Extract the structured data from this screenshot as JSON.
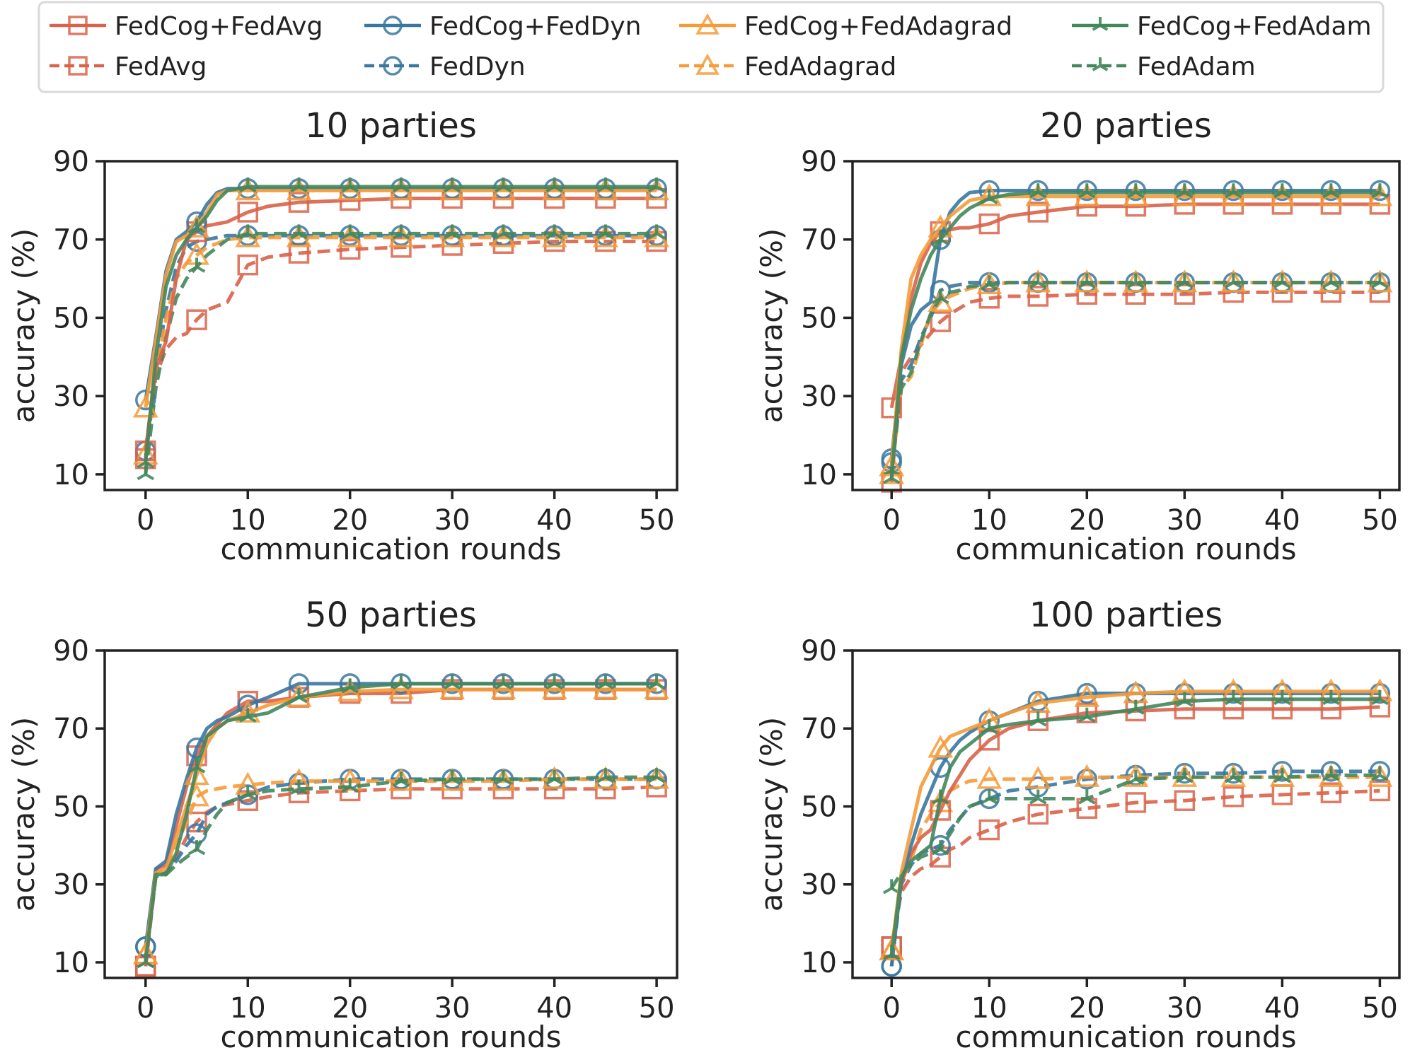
{
  "chart_data": {
    "type": "line",
    "figure": "Accuracy vs communication rounds for varying number of parties",
    "legend": {
      "placement": "top-center",
      "entries": [
        {
          "name": "FedCog+FedAvg",
          "color": "#d9634a",
          "marker": "square",
          "linestyle": "solid"
        },
        {
          "name": "FedCog+FedDyn",
          "color": "#3a77a0",
          "marker": "circle",
          "linestyle": "solid"
        },
        {
          "name": "FedCog+FedAdagrad",
          "color": "#f59b38",
          "marker": "triangle",
          "linestyle": "solid"
        },
        {
          "name": "FedCog+FedAdam",
          "color": "#43875c",
          "marker": "star",
          "linestyle": "solid"
        },
        {
          "name": "FedAvg",
          "color": "#d9634a",
          "marker": "square",
          "linestyle": "dashed"
        },
        {
          "name": "FedDyn",
          "color": "#3a77a0",
          "marker": "circle",
          "linestyle": "dashed"
        },
        {
          "name": "FedAdagrad",
          "color": "#f59b38",
          "marker": "triangle",
          "linestyle": "dashed"
        },
        {
          "name": "FedAdam",
          "color": "#43875c",
          "marker": "star",
          "linestyle": "dashed"
        }
      ]
    },
    "x": [
      0,
      1,
      2,
      3,
      4,
      5,
      6,
      7,
      8,
      10,
      12,
      15,
      20,
      25,
      30,
      35,
      40,
      45,
      50
    ],
    "marker_x": [
      0,
      5,
      10,
      15,
      20,
      25,
      30,
      35,
      40,
      45,
      50
    ],
    "xlabel": "communication rounds",
    "ylabel": "accuracy (%)",
    "xlim": [
      -4,
      52
    ],
    "ylim": [
      6,
      90
    ],
    "xticks": [
      "0",
      "10",
      "20",
      "30",
      "40",
      "50"
    ],
    "yticks": [
      "10",
      "30",
      "50",
      "70",
      "90"
    ],
    "grid": false,
    "panels": [
      {
        "title": "10 parties",
        "series": [
          {
            "name": "FedCog+FedAvg",
            "values": [
              16,
              37,
              44,
              60,
              70,
              72,
              73.5,
              74,
              74.5,
              77,
              78.5,
              79.5,
              80,
              80.5,
              80.5,
              80.5,
              80.5,
              80.5,
              80.5
            ]
          },
          {
            "name": "FedCog+FedDyn",
            "values": [
              29,
              45,
              62,
              70,
              72,
              74.5,
              79,
              82,
              83,
              83,
              83,
              83,
              83,
              83,
              83,
              83,
              83,
              83,
              83
            ]
          },
          {
            "name": "FedCog+FedAdagrad",
            "values": [
              27,
              44,
              61,
              69.5,
              71,
              73,
              77,
              81.5,
              82.5,
              82.5,
              82.5,
              82.5,
              82.5,
              82.5,
              82.5,
              82.5,
              82.5,
              82.5,
              82.5
            ]
          },
          {
            "name": "FedCog+FedAdam",
            "values": [
              13,
              40,
              58,
              66,
              70,
              73,
              76,
              80,
              82.5,
              83.5,
              83.5,
              83.5,
              83.5,
              83.5,
              83.5,
              83.5,
              83.5,
              83.5,
              83.5
            ]
          },
          {
            "name": "FedAvg",
            "values": [
              14,
              35,
              42,
              45,
              46,
              49.5,
              52,
              53,
              54,
              63.5,
              65.5,
              66.5,
              67.5,
              68,
              68.5,
              69,
              69.5,
              69.5,
              69.5
            ]
          },
          {
            "name": "FedDyn",
            "values": [
              16,
              37,
              52,
              63,
              68,
              69.5,
              70,
              70.5,
              71,
              71,
              71,
              71,
              71,
              71,
              71,
              71,
              71,
              71,
              71
            ]
          },
          {
            "name": "FedAdagrad",
            "values": [
              15,
              35,
              50,
              60,
              64,
              66,
              68,
              69,
              70,
              70.5,
              70.5,
              70.5,
              70.5,
              70.5,
              70.5,
              70.5,
              70.5,
              70.5,
              70.5
            ]
          },
          {
            "name": "FedAdam",
            "values": [
              10,
              32,
              45,
              55,
              60,
              63,
              66,
              68,
              70,
              71.5,
              71.5,
              71.5,
              71.5,
              71.5,
              71.5,
              71.5,
              71.5,
              71.5,
              71.5
            ]
          }
        ]
      },
      {
        "title": "20 parties",
        "series": [
          {
            "name": "FedCog+FedAvg",
            "values": [
              27,
              40,
              55,
              64,
              69,
              72,
              72.5,
              73,
              73,
              74,
              76,
              77,
              78.5,
              78.5,
              79,
              79,
              79,
              79,
              79
            ]
          },
          {
            "name": "FedCog+FedDyn",
            "values": [
              14,
              38,
              48,
              52,
              54,
              70,
              77,
              80,
              82,
              82.5,
              82.5,
              82.5,
              82.5,
              82.5,
              82.5,
              82.5,
              82.5,
              82.5,
              82.5
            ]
          },
          {
            "name": "FedCog+FedAdagrad",
            "values": [
              12,
              42,
              60,
              66,
              70,
              73,
              76,
              78,
              80,
              81,
              81,
              81,
              81,
              81,
              81,
              81,
              81,
              81,
              81
            ]
          },
          {
            "name": "FedCog+FedAdam",
            "values": [
              9,
              40,
              52,
              60,
              66,
              70,
              73,
              76,
              78,
              80.5,
              81.5,
              82,
              82,
              82,
              82,
              82,
              82,
              82,
              82
            ]
          },
          {
            "name": "FedAvg",
            "values": [
              8,
              36,
              40,
              43,
              46,
              49,
              51,
              52.5,
              54,
              55,
              55.5,
              55.5,
              56,
              56,
              56,
              56.5,
              56.5,
              56.5,
              56.5
            ]
          },
          {
            "name": "FedDyn",
            "values": [
              13,
              34,
              38,
              45,
              50,
              57,
              58,
              58.5,
              59,
              59,
              59,
              59,
              59,
              59,
              59,
              59,
              59,
              59,
              59
            ]
          },
          {
            "name": "FedAdagrad",
            "values": [
              10,
              32,
              35,
              43,
              51,
              54,
              55.5,
              56.5,
              57.5,
              58.5,
              59,
              59,
              59,
              59,
              59,
              59,
              59,
              59,
              59
            ]
          },
          {
            "name": "FedAdam",
            "values": [
              11,
              32,
              36,
              44,
              51,
              55,
              56.5,
              57,
              58,
              58.5,
              59,
              59,
              59,
              59,
              59,
              59,
              59,
              59,
              59
            ]
          }
        ]
      },
      {
        "title": "50 parties",
        "series": [
          {
            "name": "FedCog+FedAvg",
            "values": [
              9,
              34,
              35,
              45,
              55,
              63,
              68,
              71,
              74,
              77,
              77,
              78,
              79,
              79,
              80,
              80,
              80,
              80,
              80
            ]
          },
          {
            "name": "FedCog+FedDyn",
            "values": [
              14,
              34,
              36,
              48,
              57,
              65,
              70,
              72,
              73,
              76,
              78,
              81.5,
              81.5,
              81.5,
              81.5,
              81.5,
              81.5,
              81.5,
              81.5
            ]
          },
          {
            "name": "FedCog+FedAdagrad",
            "values": [
              12,
              33,
              34,
              42,
              50,
              58,
              66,
              70,
              72,
              74,
              76,
              78,
              79.5,
              80,
              80,
              80,
              80,
              80,
              80
            ]
          },
          {
            "name": "FedCog+FedAdam",
            "values": [
              10,
              32.5,
              32.5,
              38,
              48,
              60,
              68,
              70,
              72,
              73,
              74,
              78,
              80.5,
              81.5,
              81.5,
              81.5,
              81.5,
              81.5,
              81.5
            ]
          },
          {
            "name": "FedAvg",
            "values": [
              9,
              32,
              33,
              37,
              42,
              46,
              48.5,
              50,
              50.5,
              51.5,
              52.5,
              53.5,
              54,
              54.5,
              54.5,
              54.5,
              54.5,
              54.5,
              55
            ]
          },
          {
            "name": "FedDyn",
            "values": [
              14,
              32,
              33,
              36,
              40,
              43,
              48,
              50,
              51,
              53,
              55,
              56,
              57,
              57,
              57,
              57,
              57,
              57,
              57
            ]
          },
          {
            "name": "FedAdagrad",
            "values": [
              12,
              33,
              34,
              40,
              46,
              52.5,
              54,
              54.5,
              55,
              55.5,
              56,
              56.5,
              56.5,
              56.5,
              56.5,
              56.5,
              57,
              57,
              57
            ]
          },
          {
            "name": "FedAdam",
            "values": [
              10,
              32,
              32.5,
              35,
              37,
              39,
              44,
              48,
              51,
              53,
              54,
              54.5,
              55,
              56.5,
              57,
              57,
              57,
              57.5,
              57.5
            ]
          }
        ]
      },
      {
        "title": "100 parties",
        "series": [
          {
            "name": "FedCog+FedAvg",
            "values": [
              14,
              30,
              38,
              42,
              44,
              49,
              54,
              58,
              62,
              67,
              70,
              72,
              74,
              74.5,
              75,
              75,
              75,
              75,
              75.5
            ]
          },
          {
            "name": "FedCog+FedDyn",
            "values": [
              9,
              31,
              40,
              48,
              54,
              60,
              64,
              67,
              69,
              72,
              74,
              77,
              79,
              79,
              79,
              79,
              79,
              79,
              79
            ]
          },
          {
            "name": "FedCog+FedAdagrad",
            "values": [
              13,
              33,
              44,
              55,
              60,
              65,
              68,
              69,
              70,
              72,
              74,
              76.5,
              78,
              79,
              79.5,
              79.5,
              79.5,
              79.5,
              79.5
            ]
          },
          {
            "name": "FedCog+FedAdam",
            "values": [
              12,
              32,
              36,
              38,
              40,
              52,
              60,
              64,
              66,
              70,
              71,
              72,
              73,
              75,
              77,
              77.5,
              77.5,
              77.5,
              77.5
            ]
          },
          {
            "name": "FedAvg",
            "values": [
              14,
              28,
              32,
              34,
              35,
              37,
              39,
              40,
              42,
              44,
              46,
              48,
              49.5,
              51,
              51.5,
              52.5,
              53,
              53.5,
              54
            ]
          },
          {
            "name": "FedDyn",
            "values": [
              9,
              30,
              35,
              38,
              39,
              40,
              44,
              47,
              50,
              52,
              54,
              55,
              57,
              58,
              58.5,
              58.5,
              59,
              59,
              59
            ]
          },
          {
            "name": "FedAdagrad",
            "values": [
              13,
              31,
              36,
              44,
              48,
              51,
              54,
              55.5,
              56.5,
              57,
              57,
              57,
              57.5,
              57.5,
              57.5,
              57.5,
              57.5,
              57.5,
              57.5
            ]
          },
          {
            "name": "FedAdam",
            "values": [
              29,
              33,
              35,
              37,
              38,
              39,
              43,
              47,
              50,
              52,
              52,
              52,
              52,
              57,
              57.5,
              57.5,
              57.5,
              58,
              58
            ]
          }
        ]
      }
    ]
  }
}
